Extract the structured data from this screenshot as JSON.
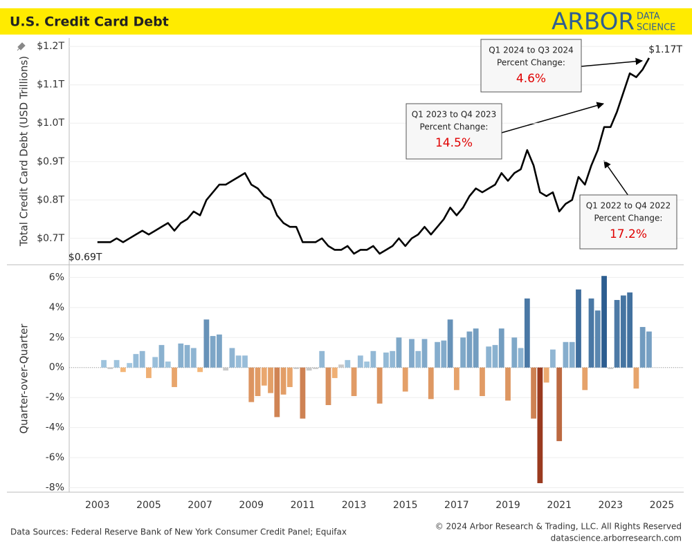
{
  "header": {
    "title": "U.S. Credit Card Debt",
    "logo_main": "ARBOR",
    "logo_sub": [
      "DATA",
      "SCIENCE"
    ]
  },
  "footer": {
    "sources": "Data Sources: Federal Reserve Bank of New York Consumer Credit Panel; Equifax",
    "copyright": "© 2024 Arbor Research & Trading, LLC. All Rights Reserved",
    "url": "datascience.arborresearch.com"
  },
  "chart_data": [
    {
      "type": "line",
      "y_label": "Total Credit Card Debt (USD Trillions)",
      "color": "#000000",
      "xlim": [
        2001.9,
        2025.85
      ],
      "ylim": [
        0.633,
        1.222
      ],
      "yticks": [
        {
          "value": 0.7,
          "label": "$0.7T"
        },
        {
          "value": 0.8,
          "label": "$0.8T"
        },
        {
          "value": 0.9,
          "label": "$0.9T"
        },
        {
          "value": 1.0,
          "label": "$1.0T"
        },
        {
          "value": 1.1,
          "label": "$1.1T"
        },
        {
          "value": 1.2,
          "label": "$1.2T"
        }
      ],
      "grid": true,
      "x": [
        2003,
        2003.25,
        2003.5,
        2003.75,
        2004,
        2004.25,
        2004.5,
        2004.75,
        2005,
        2005.25,
        2005.5,
        2005.75,
        2006,
        2006.25,
        2006.5,
        2006.75,
        2007,
        2007.25,
        2007.5,
        2007.75,
        2008,
        2008.25,
        2008.5,
        2008.75,
        2009,
        2009.25,
        2009.5,
        2009.75,
        2010,
        2010.25,
        2010.5,
        2010.75,
        2011,
        2011.25,
        2011.5,
        2011.75,
        2012,
        2012.25,
        2012.5,
        2012.75,
        2013,
        2013.25,
        2013.5,
        2013.75,
        2014,
        2014.25,
        2014.5,
        2014.75,
        2015,
        2015.25,
        2015.5,
        2015.75,
        2016,
        2016.25,
        2016.5,
        2016.75,
        2017,
        2017.25,
        2017.5,
        2017.75,
        2018,
        2018.25,
        2018.5,
        2018.75,
        2019,
        2019.25,
        2019.5,
        2019.75,
        2020,
        2020.25,
        2020.5,
        2020.75,
        2021,
        2021.25,
        2021.5,
        2021.75,
        2022,
        2022.25,
        2022.5,
        2022.75,
        2023,
        2023.25,
        2023.5,
        2023.75,
        2024,
        2024.25,
        2024.5
      ],
      "values": [
        0.69,
        0.69,
        0.69,
        0.7,
        0.69,
        0.7,
        0.71,
        0.72,
        0.71,
        0.72,
        0.73,
        0.74,
        0.72,
        0.74,
        0.75,
        0.77,
        0.76,
        0.8,
        0.82,
        0.84,
        0.84,
        0.85,
        0.86,
        0.87,
        0.84,
        0.83,
        0.81,
        0.8,
        0.76,
        0.74,
        0.73,
        0.73,
        0.69,
        0.69,
        0.69,
        0.7,
        0.68,
        0.67,
        0.67,
        0.68,
        0.66,
        0.67,
        0.67,
        0.68,
        0.66,
        0.67,
        0.68,
        0.7,
        0.68,
        0.7,
        0.71,
        0.73,
        0.71,
        0.73,
        0.75,
        0.78,
        0.76,
        0.78,
        0.81,
        0.83,
        0.82,
        0.83,
        0.84,
        0.87,
        0.85,
        0.87,
        0.88,
        0.93,
        0.89,
        0.82,
        0.81,
        0.82,
        0.77,
        0.79,
        0.8,
        0.86,
        0.84,
        0.89,
        0.93,
        0.99,
        0.99,
        1.03,
        1.08,
        1.13,
        1.12,
        1.14,
        1.17
      ],
      "end_labels": {
        "first": "$0.69T",
        "last": "$1.17T"
      },
      "annotations": [
        {
          "lines": [
            "Q1 2024 to Q3 2024",
            "Percent Change:"
          ],
          "value_label": "4.6%"
        },
        {
          "lines": [
            "Q1 2023 to Q4 2023",
            "Percent Change:"
          ],
          "value_label": "14.5%"
        },
        {
          "lines": [
            "Q1 2022 to Q4 2022",
            "Percent Change:"
          ],
          "value_label": "17.2%"
        }
      ]
    },
    {
      "type": "bar",
      "y_label": "Quarter-over-Quarter",
      "xlim": [
        2001.9,
        2025.85
      ],
      "ylim": [
        -8.3,
        6.8
      ],
      "yticks": [
        {
          "value": -8,
          "label": "-8%"
        },
        {
          "value": -6,
          "label": "-6%"
        },
        {
          "value": -4,
          "label": "-4%"
        },
        {
          "value": -2,
          "label": "-2%"
        },
        {
          "value": 0,
          "label": "0%"
        },
        {
          "value": 2,
          "label": "2%"
        },
        {
          "value": 4,
          "label": "4%"
        },
        {
          "value": 6,
          "label": "6%"
        }
      ],
      "xticks": [
        2003,
        2005,
        2007,
        2009,
        2011,
        2013,
        2015,
        2017,
        2019,
        2021,
        2023,
        2025
      ],
      "grid": true,
      "color_scale": {
        "neutral": "#c9c9c9",
        "positive": [
          "#a8cce4",
          "#2c5d90"
        ],
        "negative": [
          "#f8bb7c",
          "#9a3a1f"
        ]
      },
      "x": [
        2003.25,
        2003.5,
        2003.75,
        2004,
        2004.25,
        2004.5,
        2004.75,
        2005,
        2005.25,
        2005.5,
        2005.75,
        2006,
        2006.25,
        2006.5,
        2006.75,
        2007,
        2007.25,
        2007.5,
        2007.75,
        2008,
        2008.25,
        2008.5,
        2008.75,
        2009,
        2009.25,
        2009.5,
        2009.75,
        2010,
        2010.25,
        2010.5,
        2010.75,
        2011,
        2011.25,
        2011.5,
        2011.75,
        2012,
        2012.25,
        2012.5,
        2012.75,
        2013,
        2013.25,
        2013.5,
        2013.75,
        2014,
        2014.25,
        2014.5,
        2014.75,
        2015,
        2015.25,
        2015.5,
        2015.75,
        2016,
        2016.25,
        2016.5,
        2016.75,
        2017,
        2017.25,
        2017.5,
        2017.75,
        2018,
        2018.25,
        2018.5,
        2018.75,
        2019,
        2019.25,
        2019.5,
        2019.75,
        2020,
        2020.25,
        2020.5,
        2020.75,
        2021,
        2021.25,
        2021.5,
        2021.75,
        2022,
        2022.25,
        2022.5,
        2022.75,
        2023,
        2023.25,
        2023.5,
        2023.75,
        2024,
        2024.25,
        2024.5
      ],
      "values": [
        0.5,
        -0.1,
        0.5,
        -0.3,
        0.3,
        0.9,
        1.1,
        -0.7,
        0.7,
        1.5,
        0.4,
        -1.3,
        1.6,
        1.5,
        1.3,
        -0.3,
        3.2,
        2.1,
        2.2,
        -0.2,
        1.3,
        0.8,
        0.8,
        -2.3,
        -1.9,
        -1.2,
        -1.7,
        -3.3,
        -1.8,
        -1.3,
        -0.1,
        -3.4,
        -0.2,
        -0.1,
        1.1,
        -2.5,
        -0.7,
        0.2,
        0.5,
        -1.9,
        0.8,
        0.4,
        1.1,
        -2.4,
        1.0,
        1.1,
        2.0,
        -1.6,
        1.9,
        1.1,
        1.9,
        -2.1,
        1.7,
        1.8,
        3.2,
        -1.5,
        2.0,
        2.4,
        2.6,
        -1.9,
        1.4,
        1.5,
        2.6,
        -2.2,
        2.0,
        1.3,
        4.6,
        -3.4,
        -7.7,
        -1.0,
        1.2,
        -4.9,
        1.7,
        1.7,
        5.2,
        -1.5,
        4.6,
        3.8,
        6.1,
        -0.1,
        4.5,
        4.8,
        5.0,
        -1.4,
        2.7,
        2.4
      ]
    }
  ]
}
